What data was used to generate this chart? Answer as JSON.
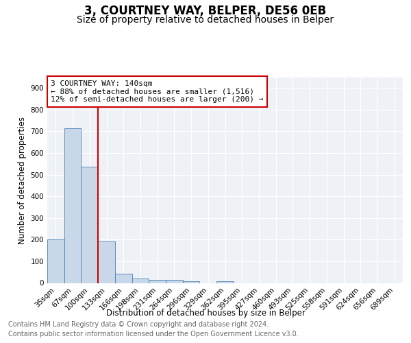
{
  "title": "3, COURTNEY WAY, BELPER, DE56 0EB",
  "subtitle": "Size of property relative to detached houses in Belper",
  "xlabel": "Distribution of detached houses by size in Belper",
  "ylabel": "Number of detached properties",
  "categories": [
    "35sqm",
    "67sqm",
    "100sqm",
    "133sqm",
    "166sqm",
    "198sqm",
    "231sqm",
    "264sqm",
    "296sqm",
    "329sqm",
    "362sqm",
    "395sqm",
    "427sqm",
    "460sqm",
    "493sqm",
    "525sqm",
    "558sqm",
    "591sqm",
    "624sqm",
    "656sqm",
    "689sqm"
  ],
  "values": [
    202,
    714,
    536,
    193,
    44,
    20,
    15,
    13,
    8,
    0,
    9,
    0,
    0,
    0,
    0,
    0,
    0,
    0,
    0,
    0,
    0
  ],
  "bar_color": "#c8d8e8",
  "bar_edge_color": "#4a7fb5",
  "vline_color": "#cc0000",
  "annotation_text": "3 COURTNEY WAY: 140sqm\n← 88% of detached houses are smaller (1,516)\n12% of semi-detached houses are larger (200) →",
  "annotation_box_color": "white",
  "annotation_box_edge_color": "#cc0000",
  "ylim": [
    0,
    950
  ],
  "yticks": [
    0,
    100,
    200,
    300,
    400,
    500,
    600,
    700,
    800,
    900
  ],
  "footer_line1": "Contains HM Land Registry data © Crown copyright and database right 2024.",
  "footer_line2": "Contains public sector information licensed under the Open Government Licence v3.0.",
  "bg_color": "#eef2f7",
  "title_fontsize": 12,
  "subtitle_fontsize": 10,
  "axis_label_fontsize": 8.5,
  "tick_fontsize": 7.5,
  "annotation_fontsize": 8,
  "footer_fontsize": 7
}
